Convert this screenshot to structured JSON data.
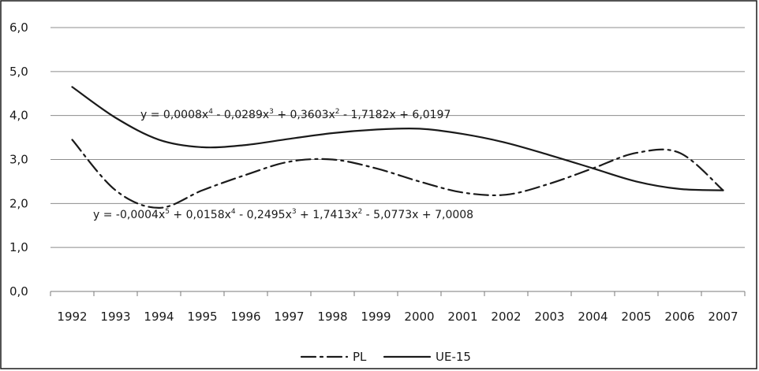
{
  "chart_data": {
    "type": "line",
    "title": "",
    "xlabel": "",
    "ylabel": "",
    "categories": [
      "1992",
      "1993",
      "1994",
      "1995",
      "1996",
      "1997",
      "1998",
      "1999",
      "2000",
      "2001",
      "2002",
      "2003",
      "2004",
      "2005",
      "2006",
      "2007"
    ],
    "y_ticks": [
      "0,0",
      "1,0",
      "2,0",
      "3,0",
      "4,0",
      "5,0",
      "6,0"
    ],
    "ylim": [
      0,
      6
    ],
    "grid": true,
    "legend_position": "bottom",
    "series": [
      {
        "name": "PL",
        "line_style": "dash-dot",
        "color": "#1a1a1a",
        "values": [
          3.45,
          2.3,
          1.9,
          2.3,
          2.65,
          2.95,
          3.0,
          2.8,
          2.5,
          2.25,
          2.2,
          2.45,
          2.8,
          3.15,
          3.15,
          2.3
        ]
      },
      {
        "name": "UE-15",
        "line_style": "solid",
        "color": "#1a1a1a",
        "values": [
          4.65,
          3.95,
          3.45,
          3.28,
          3.33,
          3.47,
          3.6,
          3.68,
          3.7,
          3.58,
          3.38,
          3.1,
          2.8,
          2.5,
          2.33,
          2.3
        ]
      }
    ],
    "annotations": [
      {
        "id": "eq-ue15",
        "series": "UE-15",
        "parts": [
          [
            "y = 0,0008x",
            ""
          ],
          [
            "4",
            ""
          ],
          [
            " - 0,0289x",
            ""
          ],
          [
            "3",
            ""
          ],
          [
            " + 0,3603x",
            ""
          ],
          [
            "2",
            ""
          ],
          [
            " - 1,7182x + 6,0197",
            ""
          ]
        ]
      },
      {
        "id": "eq-pl",
        "series": "PL",
        "parts": [
          [
            "y = -0,0004x",
            ""
          ],
          [
            "5",
            ""
          ],
          [
            " + 0,0158x",
            ""
          ],
          [
            "4",
            ""
          ],
          [
            " - 0,2495x",
            ""
          ],
          [
            "3",
            ""
          ],
          [
            " + 1,7413x",
            ""
          ],
          [
            "2",
            ""
          ],
          [
            " - 5,0773x + 7,0008",
            ""
          ]
        ]
      }
    ]
  }
}
